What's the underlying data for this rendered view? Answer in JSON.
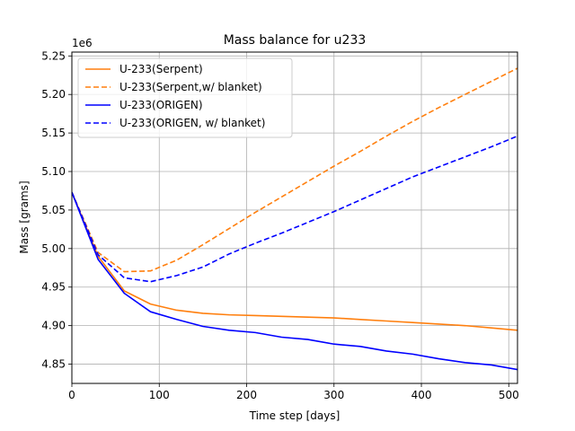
{
  "chart_data": {
    "type": "line",
    "title": "Mass balance for u233",
    "xlabel": "Time step [days]",
    "ylabel": "Mass [grams]",
    "y_offset_label": "1e6",
    "xlim": [
      0,
      510
    ],
    "ylim": [
      4.825,
      5.255
    ],
    "x_ticks": [
      0,
      100,
      200,
      300,
      400,
      500
    ],
    "y_ticks": [
      4.85,
      4.9,
      4.95,
      5.0,
      5.05,
      5.1,
      5.15,
      5.2,
      5.25
    ],
    "y_tick_labels": [
      "4.85",
      "4.90",
      "4.95",
      "5.00",
      "5.05",
      "5.10",
      "5.15",
      "5.20",
      "5.25"
    ],
    "grid": true,
    "legend_position": "top-left",
    "series": [
      {
        "name": "U-233(Serpent)",
        "color": "#ff7f0e",
        "dashed": false,
        "x": [
          0,
          30,
          60,
          90,
          120,
          150,
          180,
          210,
          240,
          270,
          300,
          330,
          360,
          390,
          420,
          450,
          480,
          510
        ],
        "y": [
          5.073,
          4.99,
          4.945,
          4.928,
          4.92,
          4.916,
          4.914,
          4.913,
          4.912,
          4.911,
          4.91,
          4.908,
          4.906,
          4.904,
          4.902,
          4.9,
          4.897,
          4.894
        ]
      },
      {
        "name": "U-233(Serpent,w/ blanket)",
        "color": "#ff7f0e",
        "dashed": true,
        "x": [
          0,
          30,
          60,
          90,
          120,
          150,
          180,
          210,
          240,
          270,
          300,
          330,
          360,
          390,
          420,
          450,
          480,
          510
        ],
        "y": [
          5.073,
          4.995,
          4.97,
          4.971,
          4.985,
          5.005,
          5.026,
          5.047,
          5.067,
          5.087,
          5.107,
          5.126,
          5.146,
          5.165,
          5.183,
          5.2,
          5.217,
          5.234
        ]
      },
      {
        "name": "U-233(ORIGEN)",
        "color": "#0000ff",
        "dashed": false,
        "x": [
          0,
          30,
          60,
          90,
          120,
          150,
          180,
          210,
          240,
          270,
          300,
          330,
          360,
          390,
          420,
          450,
          480,
          510
        ],
        "y": [
          5.073,
          4.986,
          4.942,
          4.918,
          4.908,
          4.899,
          4.894,
          4.891,
          4.885,
          4.882,
          4.876,
          4.873,
          4.867,
          4.863,
          4.857,
          4.852,
          4.849,
          4.843
        ]
      },
      {
        "name": "U-233(ORIGEN, w/ blanket)",
        "color": "#0000ff",
        "dashed": true,
        "x": [
          0,
          30,
          60,
          90,
          120,
          150,
          180,
          210,
          240,
          270,
          300,
          330,
          360,
          390,
          420,
          450,
          480,
          510
        ],
        "y": [
          5.073,
          4.992,
          4.962,
          4.957,
          4.965,
          4.976,
          4.993,
          5.007,
          5.02,
          5.034,
          5.048,
          5.063,
          5.078,
          5.093,
          5.106,
          5.119,
          5.132,
          5.146
        ]
      }
    ]
  }
}
